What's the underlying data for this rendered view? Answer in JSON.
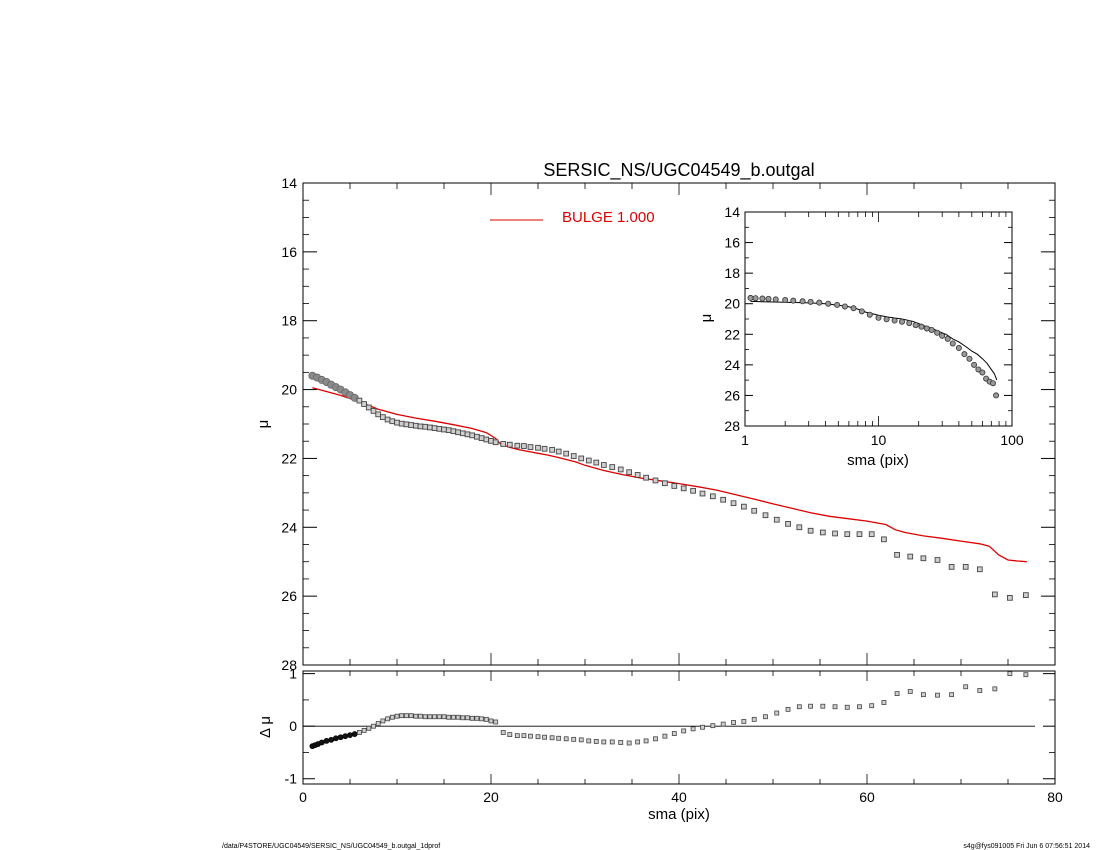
{
  "footer": {
    "path": "/data/P4STORE/UGC04549/SERSIC_NS/UGC04549_b.outgal_1dprof",
    "stamp": "s4g@fys091005  Fri Jun  6 07:56:51 2014"
  },
  "chart_data": [
    {
      "type": "scatter",
      "title": "SERSIC_NS/UGC04549_b.outgal",
      "xlabel": "",
      "ylabel": "μ",
      "xlim": [
        0,
        80
      ],
      "ylim": [
        28,
        14
      ],
      "y_inverted": true,
      "xticks": [
        "0",
        "20",
        "40",
        "60",
        "80"
      ],
      "yticks": [
        "14",
        "16",
        "18",
        "20",
        "22",
        "24",
        "26",
        "28"
      ],
      "legend": {
        "position": "top-center",
        "entries": [
          {
            "label": "BULGE  1.000",
            "color": "#dd0000"
          }
        ]
      },
      "series": [
        {
          "marker": "circle",
          "x": [
            1.0,
            1.5,
            2.0,
            2.5,
            3.0,
            3.5,
            4.0,
            4.5,
            5.0,
            5.5
          ],
          "y": [
            19.6,
            19.65,
            19.72,
            19.78,
            19.86,
            19.93,
            20.0,
            20.08,
            20.16,
            20.24
          ]
        },
        {
          "marker": "square",
          "x": [
            6.0,
            6.5,
            7.0,
            7.5,
            8.0,
            8.5,
            9.0,
            9.5,
            10.0,
            10.5,
            11.0,
            11.5,
            12.0,
            12.5,
            13.0,
            13.5,
            14.0,
            14.5,
            15.0,
            15.5,
            16.0,
            16.5,
            17.0,
            17.5,
            18.0,
            18.5,
            19.0,
            19.5,
            20.0,
            20.5,
            21.3,
            22.0,
            22.8,
            23.5,
            24.2,
            25.0,
            25.7,
            26.5,
            27.2,
            28.0,
            28.8,
            29.6,
            30.4,
            31.2,
            32.0,
            32.9,
            33.8,
            34.7,
            35.6,
            36.5,
            37.5,
            38.5,
            39.5,
            40.5,
            41.5,
            42.5,
            43.6,
            44.7,
            45.8,
            46.9,
            48.0,
            49.2,
            50.4,
            51.6,
            52.8,
            54.0,
            55.3,
            56.6,
            57.9,
            59.2,
            60.5,
            61.8,
            63.2,
            64.6,
            66.0,
            67.5,
            69.0,
            70.5,
            72.0,
            73.6,
            75.2,
            76.9
          ],
          "y": [
            20.32,
            20.42,
            20.52,
            20.62,
            20.72,
            20.8,
            20.87,
            20.92,
            20.96,
            20.99,
            21.01,
            21.03,
            21.05,
            21.07,
            21.08,
            21.1,
            21.12,
            21.14,
            21.16,
            21.18,
            21.21,
            21.24,
            21.27,
            21.3,
            21.33,
            21.37,
            21.41,
            21.45,
            21.49,
            21.53,
            21.58,
            21.6,
            21.63,
            21.64,
            21.67,
            21.69,
            21.72,
            21.75,
            21.8,
            21.86,
            21.93,
            22.0,
            22.06,
            22.12,
            22.19,
            22.25,
            22.32,
            22.4,
            22.48,
            22.56,
            22.64,
            22.72,
            22.8,
            22.87,
            22.94,
            23.02,
            23.1,
            23.2,
            23.3,
            23.4,
            23.52,
            23.65,
            23.78,
            23.9,
            24.0,
            24.1,
            24.15,
            24.18,
            24.2,
            24.2,
            24.2,
            24.35,
            24.8,
            24.85,
            24.9,
            24.95,
            25.15,
            25.15,
            25.22,
            25.95,
            26.05,
            25.97
          ]
        },
        {
          "type": "line",
          "name": "BULGE  1.000",
          "color": "#dd0000",
          "x": [
            1.0,
            2.0,
            4.0,
            6.0,
            8.0,
            10.0,
            12.0,
            14.0,
            16.0,
            18.0,
            19.5,
            20.5,
            21.0,
            22.0,
            23.0,
            24.0,
            25.0,
            26.0,
            27.0,
            28.0,
            29.0,
            30.0,
            32.0,
            34.0,
            36.0,
            38.0,
            40.0,
            42.0,
            44.0,
            46.0,
            48.0,
            50.0,
            52.0,
            54.0,
            56.0,
            58.0,
            60.0,
            62.0,
            63.0,
            64.0,
            66.0,
            68.0,
            70.0,
            72.0,
            73.0,
            74.0,
            75.0,
            76.0,
            77.0
          ],
          "y": [
            19.95,
            20.02,
            20.17,
            20.35,
            20.57,
            20.72,
            20.83,
            20.92,
            21.02,
            21.13,
            21.25,
            21.42,
            21.58,
            21.68,
            21.75,
            21.8,
            21.85,
            21.9,
            21.96,
            22.03,
            22.1,
            22.2,
            22.35,
            22.47,
            22.57,
            22.65,
            22.73,
            22.82,
            22.92,
            23.05,
            23.18,
            23.32,
            23.45,
            23.58,
            23.68,
            23.75,
            23.82,
            23.92,
            24.07,
            24.15,
            24.25,
            24.32,
            24.4,
            24.48,
            24.55,
            24.8,
            24.95,
            24.98,
            25.0
          ]
        }
      ]
    },
    {
      "type": "scatter",
      "title": "",
      "xlabel": "sma (pix)",
      "ylabel": "Δ μ",
      "xlim": [
        0,
        80
      ],
      "ylim": [
        -1.1,
        1.05
      ],
      "xticks": [
        "0",
        "20",
        "40",
        "60",
        "80"
      ],
      "yticks": [
        "1",
        "0",
        "-1"
      ],
      "zero_line": true,
      "series": [
        {
          "marker": "circle",
          "x": [
            1.0,
            1.3,
            1.6,
            2.0,
            2.5,
            3.0,
            3.5,
            4.0,
            4.5,
            5.0,
            5.5
          ],
          "y": [
            -0.38,
            -0.36,
            -0.34,
            -0.31,
            -0.28,
            -0.26,
            -0.23,
            -0.21,
            -0.19,
            -0.17,
            -0.15
          ]
        },
        {
          "marker": "square",
          "x": [
            6.0,
            6.5,
            7.0,
            7.5,
            8.0,
            8.5,
            9.0,
            9.5,
            10.0,
            10.5,
            11.0,
            11.5,
            12.0,
            12.5,
            13.0,
            13.5,
            14.0,
            14.5,
            15.0,
            15.5,
            16.0,
            16.5,
            17.0,
            17.5,
            18.0,
            18.5,
            19.0,
            19.5,
            20.0,
            20.5,
            21.3,
            22.0,
            22.8,
            23.5,
            24.2,
            25.0,
            25.7,
            26.5,
            27.2,
            28.0,
            28.8,
            29.6,
            30.4,
            31.2,
            32.0,
            32.9,
            33.8,
            34.7,
            35.6,
            36.5,
            37.5,
            38.5,
            39.5,
            40.5,
            41.5,
            42.5,
            43.6,
            44.7,
            45.8,
            46.9,
            48.0,
            49.2,
            50.4,
            51.6,
            52.8,
            54.0,
            55.3,
            56.6,
            57.9,
            59.2,
            60.5,
            61.8,
            63.2,
            64.6,
            66.0,
            67.5,
            69.0,
            70.5,
            72.0,
            73.6,
            75.2,
            76.9
          ],
          "y": [
            -0.12,
            -0.08,
            -0.04,
            0.0,
            0.05,
            0.1,
            0.14,
            0.17,
            0.19,
            0.2,
            0.2,
            0.2,
            0.19,
            0.19,
            0.18,
            0.18,
            0.18,
            0.18,
            0.18,
            0.17,
            0.17,
            0.17,
            0.16,
            0.16,
            0.15,
            0.15,
            0.14,
            0.13,
            0.1,
            0.08,
            -0.12,
            -0.16,
            -0.18,
            -0.18,
            -0.19,
            -0.2,
            -0.21,
            -0.22,
            -0.23,
            -0.24,
            -0.25,
            -0.26,
            -0.28,
            -0.29,
            -0.3,
            -0.3,
            -0.31,
            -0.32,
            -0.3,
            -0.28,
            -0.24,
            -0.19,
            -0.14,
            -0.09,
            -0.05,
            -0.02,
            0.01,
            0.04,
            0.07,
            0.09,
            0.13,
            0.18,
            0.25,
            0.32,
            0.37,
            0.38,
            0.38,
            0.37,
            0.36,
            0.37,
            0.39,
            0.45,
            0.62,
            0.66,
            0.6,
            0.59,
            0.6,
            0.75,
            0.68,
            0.71,
            1.0,
            0.98
          ]
        }
      ]
    },
    {
      "type": "scatter",
      "title": "",
      "xlabel": "sma (pix)",
      "ylabel": "μ",
      "xscale": "log",
      "xlim": [
        1,
        100
      ],
      "ylim": [
        28,
        14
      ],
      "y_inverted": true,
      "xticks": [
        "1",
        "10",
        "100"
      ],
      "yticks": [
        "14",
        "16",
        "18",
        "20",
        "22",
        "24",
        "26",
        "28"
      ],
      "series": [
        {
          "marker": "circle",
          "x": [
            1.1,
            1.2,
            1.35,
            1.5,
            1.7,
            2.0,
            2.3,
            2.7,
            3.1,
            3.6,
            4.2,
            4.9,
            5.6,
            6.5,
            7.5,
            8.6,
            10.0,
            11.5,
            13.2,
            15.0,
            17.0,
            19.0,
            21.0,
            23.0,
            25.0,
            27.5,
            30.0,
            33.0,
            36.0,
            40.0,
            44.0,
            48.0,
            52.0,
            56.0,
            60.0,
            64.0,
            68.0,
            72.0,
            76.0
          ],
          "y": [
            19.62,
            19.64,
            19.66,
            19.68,
            19.72,
            19.76,
            19.8,
            19.84,
            19.88,
            19.93,
            20.0,
            20.08,
            20.18,
            20.3,
            20.5,
            20.72,
            20.92,
            21.02,
            21.1,
            21.18,
            21.27,
            21.4,
            21.5,
            21.62,
            21.72,
            21.9,
            22.1,
            22.3,
            22.6,
            22.9,
            23.3,
            23.6,
            24.0,
            24.3,
            24.5,
            24.9,
            25.1,
            25.2,
            26.0
          ]
        },
        {
          "type": "line",
          "x": [
            1.1,
            1.5,
            2.0,
            3.0,
            4.0,
            5.0,
            6.0,
            7.0,
            8.0,
            10.0,
            12.0,
            15.0,
            18.0,
            20.0,
            22.0,
            25.0,
            28.0,
            32.0,
            36.0,
            40.0,
            45.0,
            50.0,
            55.0,
            60.0,
            65.0,
            70.0,
            74.0,
            77.0
          ],
          "y": [
            19.85,
            19.88,
            19.9,
            19.95,
            20.0,
            20.1,
            20.2,
            20.35,
            20.55,
            20.75,
            20.88,
            21.0,
            21.15,
            21.3,
            21.45,
            21.6,
            21.8,
            22.0,
            22.3,
            22.5,
            22.8,
            23.1,
            23.3,
            23.6,
            23.9,
            24.3,
            24.6,
            25.0
          ]
        }
      ]
    }
  ]
}
